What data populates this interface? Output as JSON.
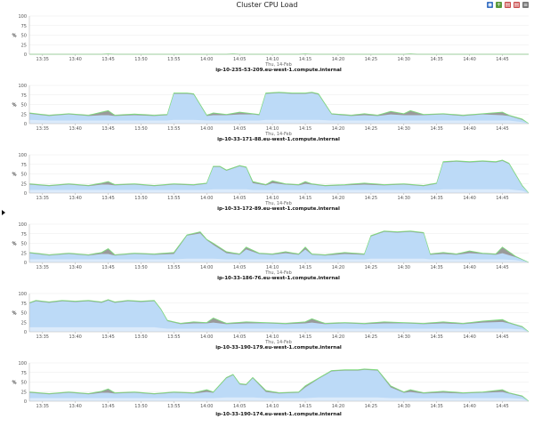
{
  "page": {
    "title": "Cluster CPU Load"
  },
  "toolbar": [
    {
      "name": "chart-type-icon",
      "color": "#3a72c4",
      "glyph": "◉"
    },
    {
      "name": "add-chart-icon",
      "color": "#5a9a3c",
      "glyph": "+"
    },
    {
      "name": "print-icon",
      "color": "#c94a4a",
      "glyph": "▤"
    },
    {
      "name": "export-icon",
      "color": "#c94a4a",
      "glyph": "▤"
    },
    {
      "name": "menu-icon",
      "color": "#777777",
      "glyph": "≡"
    }
  ],
  "colors": {
    "gray": "#9a9a9a",
    "blue": "#bcdaf7",
    "blue_light": "#dcebfb",
    "green": "#7fdc7f",
    "grid": "#ebebeb",
    "axis": "#bbbbbb"
  },
  "chart_data": [
    {
      "type": "area",
      "title": "ip-10-235-53-209.eu-west-1.compute.internal",
      "xlabel": "Thu, 14-Feb",
      "ylabel": "%",
      "xlim": [
        "13:33",
        "14:49"
      ],
      "ylim": [
        0,
        100
      ],
      "x_ticks": [
        "13:35",
        "13:40",
        "13:45",
        "13:50",
        "13:55",
        "14:00",
        "14:05",
        "14:10",
        "14:15",
        "14:20",
        "14:25",
        "14:30",
        "14:35",
        "14:40",
        "14:45"
      ],
      "y_ticks": [
        0,
        25,
        50,
        75,
        100
      ],
      "grid": true,
      "x": [
        "13:33",
        "13:44",
        "13:45",
        "13:46",
        "14:03",
        "14:04",
        "14:05",
        "14:14",
        "14:15",
        "14:16",
        "14:30",
        "14:31",
        "14:32",
        "14:48",
        "14:49"
      ],
      "series": [
        {
          "values": [
            0,
            0,
            1,
            0,
            0,
            1,
            0,
            0,
            1,
            0,
            0,
            1,
            0,
            0,
            0
          ]
        },
        {
          "values": [
            0,
            0,
            0,
            0,
            0,
            0,
            0,
            0,
            0,
            0,
            0,
            0,
            0,
            0,
            0
          ]
        },
        {
          "values": [
            0,
            0,
            0,
            0,
            0,
            0,
            0,
            0,
            0,
            0,
            0,
            0,
            0,
            0,
            0
          ]
        }
      ]
    },
    {
      "type": "area",
      "title": "ip-10-33-171-88.eu-west-1.compute.internal",
      "xlabel": "Thu, 14-Feb",
      "ylabel": "%",
      "xlim": [
        "13:33",
        "14:49"
      ],
      "ylim": [
        0,
        100
      ],
      "x_ticks": [
        "13:35",
        "13:40",
        "13:45",
        "13:50",
        "13:55",
        "14:00",
        "14:05",
        "14:10",
        "14:15",
        "14:20",
        "14:25",
        "14:30",
        "14:35",
        "14:40",
        "14:45"
      ],
      "y_ticks": [
        0,
        25,
        50,
        75,
        100
      ],
      "grid": true,
      "x": [
        "13:33",
        "13:36",
        "13:39",
        "13:42",
        "13:44",
        "13:45",
        "13:46",
        "13:49",
        "13:52",
        "13:54",
        "13:55",
        "13:57",
        "13:58",
        "14:00",
        "14:01",
        "14:03",
        "14:05",
        "14:07",
        "14:08",
        "14:09",
        "14:11",
        "14:13",
        "14:15",
        "14:16",
        "14:17",
        "14:19",
        "14:22",
        "14:24",
        "14:26",
        "14:28",
        "14:30",
        "14:31",
        "14:33",
        "14:36",
        "14:39",
        "14:42",
        "14:45",
        "14:46",
        "14:48",
        "14:49"
      ],
      "series": [
        {
          "values": [
            28,
            22,
            26,
            22,
            30,
            34,
            22,
            25,
            22,
            24,
            80,
            80,
            78,
            22,
            28,
            24,
            30,
            26,
            24,
            80,
            82,
            80,
            80,
            82,
            78,
            26,
            22,
            26,
            22,
            32,
            26,
            34,
            24,
            26,
            22,
            26,
            30,
            22,
            12,
            0
          ]
        },
        {
          "values": [
            26,
            20,
            24,
            20,
            22,
            22,
            20,
            22,
            20,
            22,
            78,
            78,
            76,
            20,
            22,
            22,
            24,
            24,
            22,
            78,
            80,
            78,
            78,
            80,
            76,
            24,
            20,
            22,
            20,
            24,
            22,
            22,
            22,
            24,
            20,
            24,
            22,
            20,
            10,
            0
          ]
        },
        {
          "values": [
            10,
            8,
            8,
            8,
            8,
            8,
            8,
            8,
            8,
            8,
            10,
            10,
            10,
            8,
            8,
            8,
            8,
            8,
            8,
            10,
            10,
            10,
            10,
            10,
            10,
            8,
            8,
            8,
            8,
            8,
            8,
            8,
            8,
            8,
            8,
            8,
            8,
            8,
            4,
            0
          ]
        }
      ]
    },
    {
      "type": "area",
      "title": "ip-10-33-172-89.eu-west-1.compute.internal",
      "xlabel": "Thu, 14-Feb",
      "ylabel": "%",
      "xlim": [
        "13:33",
        "14:49"
      ],
      "ylim": [
        0,
        100
      ],
      "x_ticks": [
        "13:35",
        "13:40",
        "13:45",
        "13:50",
        "13:55",
        "14:00",
        "14:05",
        "14:10",
        "14:15",
        "14:20",
        "14:25",
        "14:30",
        "14:35",
        "14:40",
        "14:45"
      ],
      "y_ticks": [
        0,
        25,
        50,
        75,
        100
      ],
      "grid": true,
      "x": [
        "13:33",
        "13:36",
        "13:39",
        "13:42",
        "13:44",
        "13:45",
        "13:46",
        "13:49",
        "13:52",
        "13:55",
        "13:58",
        "14:00",
        "14:01",
        "14:02",
        "14:03",
        "14:05",
        "14:06",
        "14:07",
        "14:09",
        "14:10",
        "14:12",
        "14:14",
        "14:15",
        "14:16",
        "14:18",
        "14:21",
        "14:24",
        "14:27",
        "14:30",
        "14:33",
        "14:35",
        "14:36",
        "14:38",
        "14:40",
        "14:42",
        "14:44",
        "14:45",
        "14:46",
        "14:48",
        "14:49"
      ],
      "series": [
        {
          "values": [
            24,
            20,
            24,
            20,
            26,
            30,
            22,
            24,
            20,
            24,
            22,
            26,
            70,
            70,
            60,
            72,
            68,
            30,
            22,
            32,
            24,
            22,
            30,
            24,
            20,
            22,
            26,
            22,
            24,
            20,
            26,
            82,
            84,
            82,
            84,
            82,
            86,
            78,
            20,
            0
          ]
        },
        {
          "values": [
            22,
            18,
            22,
            18,
            22,
            22,
            20,
            22,
            18,
            22,
            20,
            24,
            68,
            68,
            58,
            70,
            66,
            26,
            20,
            26,
            22,
            20,
            24,
            22,
            18,
            20,
            22,
            20,
            22,
            18,
            24,
            80,
            82,
            80,
            82,
            80,
            84,
            76,
            18,
            0
          ]
        },
        {
          "values": [
            8,
            8,
            8,
            8,
            8,
            8,
            8,
            8,
            8,
            8,
            8,
            8,
            10,
            10,
            10,
            10,
            10,
            8,
            8,
            8,
            8,
            8,
            8,
            8,
            8,
            8,
            8,
            8,
            8,
            8,
            8,
            10,
            10,
            10,
            10,
            10,
            10,
            10,
            6,
            0
          ]
        }
      ]
    },
    {
      "type": "area",
      "title": "ip-10-33-186-76.eu-west-1.compute.internal",
      "xlabel": "Thu, 14-Feb",
      "ylabel": "%",
      "xlim": [
        "13:33",
        "14:49"
      ],
      "ylim": [
        0,
        100
      ],
      "x_ticks": [
        "13:35",
        "13:40",
        "13:45",
        "13:50",
        "13:55",
        "14:00",
        "14:05",
        "14:10",
        "14:15",
        "14:20",
        "14:25",
        "14:30",
        "14:35",
        "14:40",
        "14:45"
      ],
      "y_ticks": [
        0,
        25,
        50,
        75,
        100
      ],
      "grid": true,
      "x": [
        "13:33",
        "13:36",
        "13:39",
        "13:42",
        "13:44",
        "13:45",
        "13:46",
        "13:49",
        "13:52",
        "13:55",
        "13:57",
        "13:59",
        "14:00",
        "14:01",
        "14:03",
        "14:05",
        "14:06",
        "14:08",
        "14:10",
        "14:12",
        "14:14",
        "14:15",
        "14:16",
        "14:18",
        "14:21",
        "14:24",
        "14:25",
        "14:27",
        "14:29",
        "14:31",
        "14:33",
        "14:34",
        "14:36",
        "14:38",
        "14:40",
        "14:42",
        "14:44",
        "14:45",
        "14:47",
        "14:49"
      ],
      "series": [
        {
          "values": [
            26,
            20,
            24,
            20,
            26,
            36,
            20,
            24,
            22,
            26,
            72,
            80,
            60,
            50,
            28,
            22,
            40,
            24,
            22,
            28,
            22,
            40,
            22,
            20,
            26,
            22,
            70,
            82,
            80,
            82,
            78,
            22,
            26,
            22,
            30,
            24,
            22,
            40,
            16,
            0
          ]
        },
        {
          "values": [
            24,
            18,
            22,
            18,
            22,
            22,
            18,
            22,
            20,
            22,
            70,
            76,
            58,
            46,
            24,
            20,
            34,
            22,
            20,
            24,
            20,
            34,
            20,
            18,
            22,
            20,
            68,
            80,
            78,
            80,
            76,
            20,
            22,
            20,
            24,
            22,
            20,
            24,
            14,
            0
          ]
        },
        {
          "values": [
            8,
            8,
            8,
            8,
            8,
            8,
            8,
            8,
            8,
            8,
            10,
            10,
            10,
            10,
            8,
            8,
            8,
            8,
            8,
            8,
            8,
            8,
            8,
            8,
            8,
            8,
            10,
            10,
            10,
            10,
            10,
            8,
            8,
            8,
            8,
            8,
            8,
            8,
            6,
            0
          ]
        }
      ]
    },
    {
      "type": "area",
      "title": "ip-10-33-190-179.eu-west-1.compute.internal",
      "xlabel": "Thu, 14-Feb",
      "ylabel": "%",
      "xlim": [
        "13:33",
        "14:49"
      ],
      "ylim": [
        0,
        100
      ],
      "x_ticks": [
        "13:35",
        "13:40",
        "13:45",
        "13:50",
        "13:55",
        "14:00",
        "14:05",
        "14:10",
        "14:15",
        "14:20",
        "14:25",
        "14:30",
        "14:35",
        "14:40",
        "14:45"
      ],
      "y_ticks": [
        0,
        25,
        50,
        75,
        100
      ],
      "grid": true,
      "x": [
        "13:33",
        "13:34",
        "13:36",
        "13:38",
        "13:40",
        "13:42",
        "13:44",
        "13:45",
        "13:46",
        "13:48",
        "13:50",
        "13:52",
        "13:53",
        "13:54",
        "13:56",
        "13:58",
        "14:00",
        "14:01",
        "14:03",
        "14:06",
        "14:09",
        "14:12",
        "14:15",
        "14:16",
        "14:18",
        "14:21",
        "14:24",
        "14:27",
        "14:30",
        "14:33",
        "14:36",
        "14:39",
        "14:42",
        "14:45",
        "14:46",
        "14:48",
        "14:49"
      ],
      "series": [
        {
          "values": [
            76,
            82,
            78,
            82,
            80,
            82,
            78,
            84,
            78,
            82,
            80,
            82,
            60,
            30,
            22,
            26,
            24,
            36,
            22,
            26,
            24,
            22,
            26,
            34,
            22,
            24,
            22,
            26,
            24,
            22,
            26,
            22,
            28,
            32,
            24,
            14,
            0
          ]
        },
        {
          "values": [
            74,
            80,
            76,
            80,
            78,
            80,
            76,
            82,
            76,
            80,
            78,
            80,
            58,
            28,
            20,
            22,
            22,
            24,
            20,
            22,
            22,
            20,
            22,
            24,
            20,
            22,
            20,
            22,
            22,
            20,
            22,
            20,
            24,
            26,
            22,
            12,
            0
          ]
        },
        {
          "values": [
            12,
            12,
            12,
            12,
            12,
            12,
            12,
            12,
            12,
            12,
            12,
            12,
            10,
            8,
            8,
            8,
            8,
            8,
            8,
            8,
            8,
            8,
            8,
            8,
            8,
            8,
            8,
            8,
            8,
            8,
            8,
            8,
            8,
            8,
            8,
            6,
            0
          ]
        }
      ]
    },
    {
      "type": "area",
      "title": "ip-10-33-190-174.eu-west-1.compute.internal",
      "xlabel": "",
      "ylabel": "%",
      "xlim": [
        "13:33",
        "14:49"
      ],
      "ylim": [
        0,
        100
      ],
      "x_ticks": [
        "13:35",
        "13:40",
        "13:45",
        "13:50",
        "13:55",
        "14:00",
        "14:05",
        "14:10",
        "14:15",
        "14:20",
        "14:25",
        "14:30",
        "14:35",
        "14:40",
        "14:45"
      ],
      "y_ticks": [
        0,
        25,
        50,
        75,
        100
      ],
      "grid": true,
      "x": [
        "13:33",
        "13:36",
        "13:39",
        "13:42",
        "13:44",
        "13:45",
        "13:46",
        "13:49",
        "13:52",
        "13:55",
        "13:58",
        "14:00",
        "14:01",
        "14:03",
        "14:04",
        "14:05",
        "14:06",
        "14:07",
        "14:09",
        "14:11",
        "14:14",
        "14:15",
        "14:17",
        "14:19",
        "14:21",
        "14:23",
        "14:24",
        "14:26",
        "14:28",
        "14:30",
        "14:31",
        "14:33",
        "14:36",
        "14:39",
        "14:42",
        "14:45",
        "14:46",
        "14:48",
        "14:49"
      ],
      "series": [
        {
          "values": [
            24,
            20,
            24,
            20,
            26,
            32,
            22,
            24,
            20,
            24,
            22,
            30,
            24,
            62,
            70,
            46,
            44,
            62,
            28,
            22,
            24,
            40,
            60,
            80,
            82,
            82,
            84,
            82,
            40,
            24,
            30,
            22,
            26,
            22,
            24,
            30,
            22,
            14,
            0
          ]
        },
        {
          "values": [
            22,
            18,
            22,
            18,
            22,
            22,
            20,
            22,
            18,
            22,
            20,
            24,
            22,
            60,
            68,
            44,
            42,
            60,
            24,
            20,
            22,
            36,
            58,
            78,
            80,
            80,
            82,
            80,
            36,
            22,
            24,
            20,
            22,
            20,
            22,
            24,
            20,
            12,
            0
          ]
        },
        {
          "values": [
            8,
            8,
            8,
            8,
            8,
            8,
            8,
            8,
            8,
            8,
            8,
            8,
            8,
            10,
            10,
            10,
            10,
            10,
            8,
            8,
            8,
            8,
            10,
            10,
            10,
            10,
            10,
            10,
            8,
            8,
            8,
            8,
            8,
            8,
            8,
            8,
            8,
            6,
            0
          ]
        }
      ]
    }
  ]
}
